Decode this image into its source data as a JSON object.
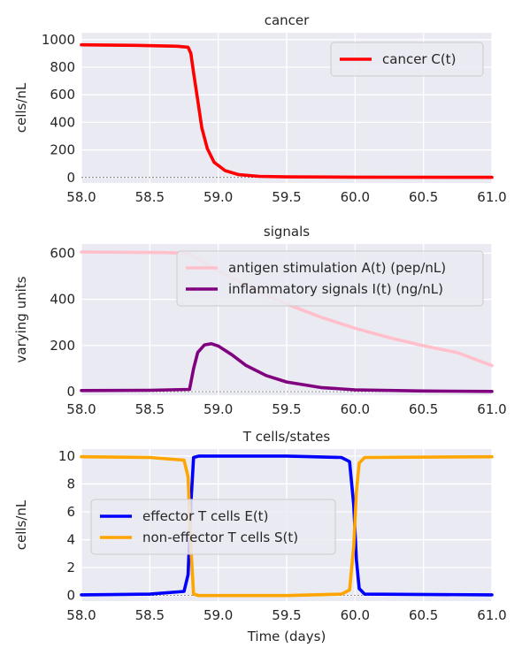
{
  "chart_data": [
    {
      "type": "line",
      "title": "cancer",
      "ylabel": "cells/nL",
      "xlabel": "",
      "xlim": [
        58.0,
        61.0
      ],
      "ylim": [
        -40,
        1050
      ],
      "xticks": [
        "58.0",
        "58.5",
        "59.0",
        "59.5",
        "60.0",
        "60.5",
        "61.0"
      ],
      "yticks": [
        "0",
        "200",
        "400",
        "600",
        "800",
        "1000"
      ],
      "grid": true,
      "legend_position": "top-right",
      "series": [
        {
          "name": "cancer C(t)",
          "color": "#ff0000",
          "x": [
            58.0,
            58.4,
            58.7,
            58.78,
            58.8,
            58.82,
            58.85,
            58.88,
            58.92,
            58.97,
            59.05,
            59.15,
            59.3,
            59.5,
            60.0,
            61.0
          ],
          "y": [
            962,
            958,
            952,
            945,
            900,
            760,
            560,
            360,
            210,
            110,
            50,
            20,
            8,
            4,
            2,
            1
          ]
        }
      ]
    },
    {
      "type": "line",
      "title": "signals",
      "ylabel": "varying units",
      "xlabel": "",
      "xlim": [
        58.0,
        61.0
      ],
      "ylim": [
        -15,
        640
      ],
      "xticks": [
        "58.0",
        "58.5",
        "59.0",
        "59.5",
        "60.0",
        "60.5",
        "61.0"
      ],
      "yticks": [
        "0",
        "200",
        "400",
        "600"
      ],
      "grid": true,
      "legend_position": "top-right",
      "series": [
        {
          "name": "antigen stimulation A(t) (pep/nL)",
          "color": "#ffc0cb",
          "x": [
            58.0,
            58.6,
            58.78,
            59.0,
            59.25,
            59.5,
            59.75,
            60.0,
            60.25,
            60.5,
            60.75,
            61.0
          ],
          "y": [
            605,
            603,
            600,
            524,
            446,
            380,
            323,
            275,
            234,
            199,
            169,
            113
          ]
        },
        {
          "name": "inflammatory signals I(t) (ng/nL)",
          "color": "#800080",
          "x": [
            58.0,
            58.5,
            58.79,
            58.82,
            58.85,
            58.9,
            58.95,
            59.0,
            59.1,
            59.2,
            59.35,
            59.5,
            59.75,
            60.0,
            60.5,
            61.0
          ],
          "y": [
            5,
            6,
            10,
            100,
            170,
            203,
            208,
            198,
            160,
            115,
            70,
            42,
            18,
            8,
            3,
            1
          ]
        }
      ]
    },
    {
      "type": "line",
      "title": "T cells/states",
      "ylabel": "cells/nL",
      "xlabel": "Time (days)",
      "xlim": [
        58.0,
        61.0
      ],
      "ylim": [
        -0.4,
        10.5
      ],
      "xticks": [
        "58.0",
        "58.5",
        "59.0",
        "59.5",
        "60.0",
        "60.5",
        "61.0"
      ],
      "yticks": [
        "0",
        "2",
        "4",
        "6",
        "8",
        "10"
      ],
      "grid": true,
      "legend_position": "center-left",
      "series": [
        {
          "name": "effector T cells E(t)",
          "color": "#0000ff",
          "x": [
            58.0,
            58.5,
            58.75,
            58.78,
            58.8,
            58.82,
            58.86,
            59.5,
            59.9,
            59.96,
            59.99,
            60.01,
            60.03,
            60.07,
            61.0
          ],
          "y": [
            0.05,
            0.1,
            0.3,
            1.5,
            6.5,
            9.9,
            10.0,
            10.0,
            9.9,
            9.6,
            6.5,
            2.5,
            0.5,
            0.1,
            0.05
          ]
        },
        {
          "name": "non-effector T cells S(t)",
          "color": "#ffa500",
          "x": [
            58.0,
            58.5,
            58.75,
            58.78,
            58.8,
            58.82,
            58.86,
            59.5,
            59.9,
            59.96,
            59.99,
            60.01,
            60.03,
            60.07,
            61.0
          ],
          "y": [
            9.95,
            9.9,
            9.7,
            8.5,
            3.5,
            0.1,
            0.0,
            0.0,
            0.1,
            0.4,
            3.5,
            7.5,
            9.5,
            9.9,
            9.95
          ]
        }
      ]
    }
  ]
}
